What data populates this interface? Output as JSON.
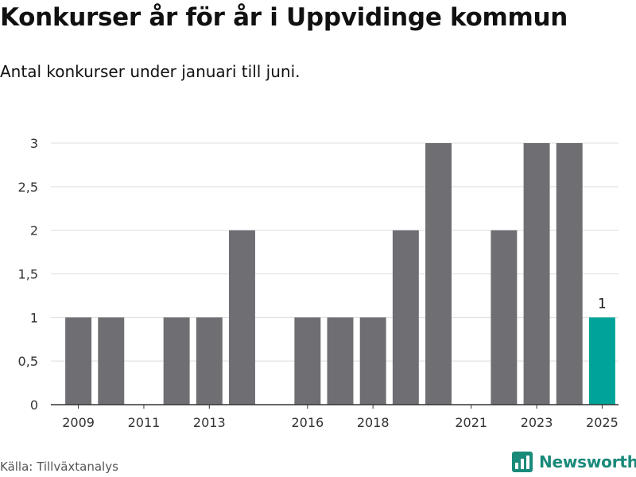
{
  "title": "Konkurser år för år i Uppvidinge kommun",
  "subtitle": "Antal konkurser under januari till juni.",
  "source": "Källa: Tillväxtanalys",
  "brand": {
    "name": "Newsworthy",
    "icon": "bar-chart-logo-icon"
  },
  "colors": {
    "bar": "#6e6e73",
    "highlight": "#00a398",
    "grid": "#dddddd",
    "axis": "#333333",
    "brand": "#1a8a7a"
  },
  "chart_data": {
    "type": "bar",
    "x": [
      2009,
      2010,
      2011,
      2012,
      2013,
      2014,
      2015,
      2016,
      2017,
      2018,
      2019,
      2020,
      2021,
      2022,
      2023,
      2024,
      2025
    ],
    "values": [
      1,
      1,
      0,
      1,
      1,
      2,
      0,
      1,
      1,
      1,
      2,
      3,
      0,
      2,
      3,
      3,
      1
    ],
    "highlight": [
      2025
    ],
    "data_labels": [
      {
        "x": 2025,
        "label": "1"
      }
    ],
    "xticks": [
      "2009",
      "2011",
      "2013",
      "2016",
      "2018",
      "2021",
      "2023",
      "2025"
    ],
    "yticks": [
      "0",
      "0,5",
      "1",
      "1,5",
      "2",
      "2,5",
      "3"
    ],
    "ylim": [
      0,
      3
    ],
    "grid": true,
    "legend": "none"
  }
}
